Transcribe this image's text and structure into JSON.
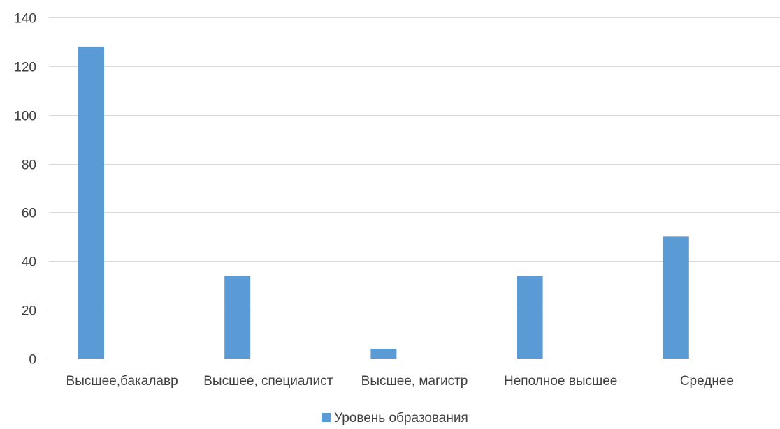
{
  "colors": {
    "bar": "#5b9bd5",
    "grid": "#d9d9d9",
    "axis": "#bfbfbf",
    "text": "#404040"
  },
  "chart_data": {
    "type": "bar",
    "categories": [
      "Высшее,бакалавр",
      "Высшее, специалист",
      "Высшее, магистр",
      "Неполное высшее",
      "Среднее"
    ],
    "series": [
      {
        "name": "Уровень образования",
        "values": [
          128,
          34,
          4,
          34,
          50
        ]
      }
    ],
    "title": "",
    "xlabel": "",
    "ylabel": "",
    "ylim": [
      0,
      140
    ],
    "yticks": [
      0,
      20,
      40,
      60,
      80,
      100,
      120,
      140
    ],
    "grid": true,
    "legend_position": "bottom"
  }
}
